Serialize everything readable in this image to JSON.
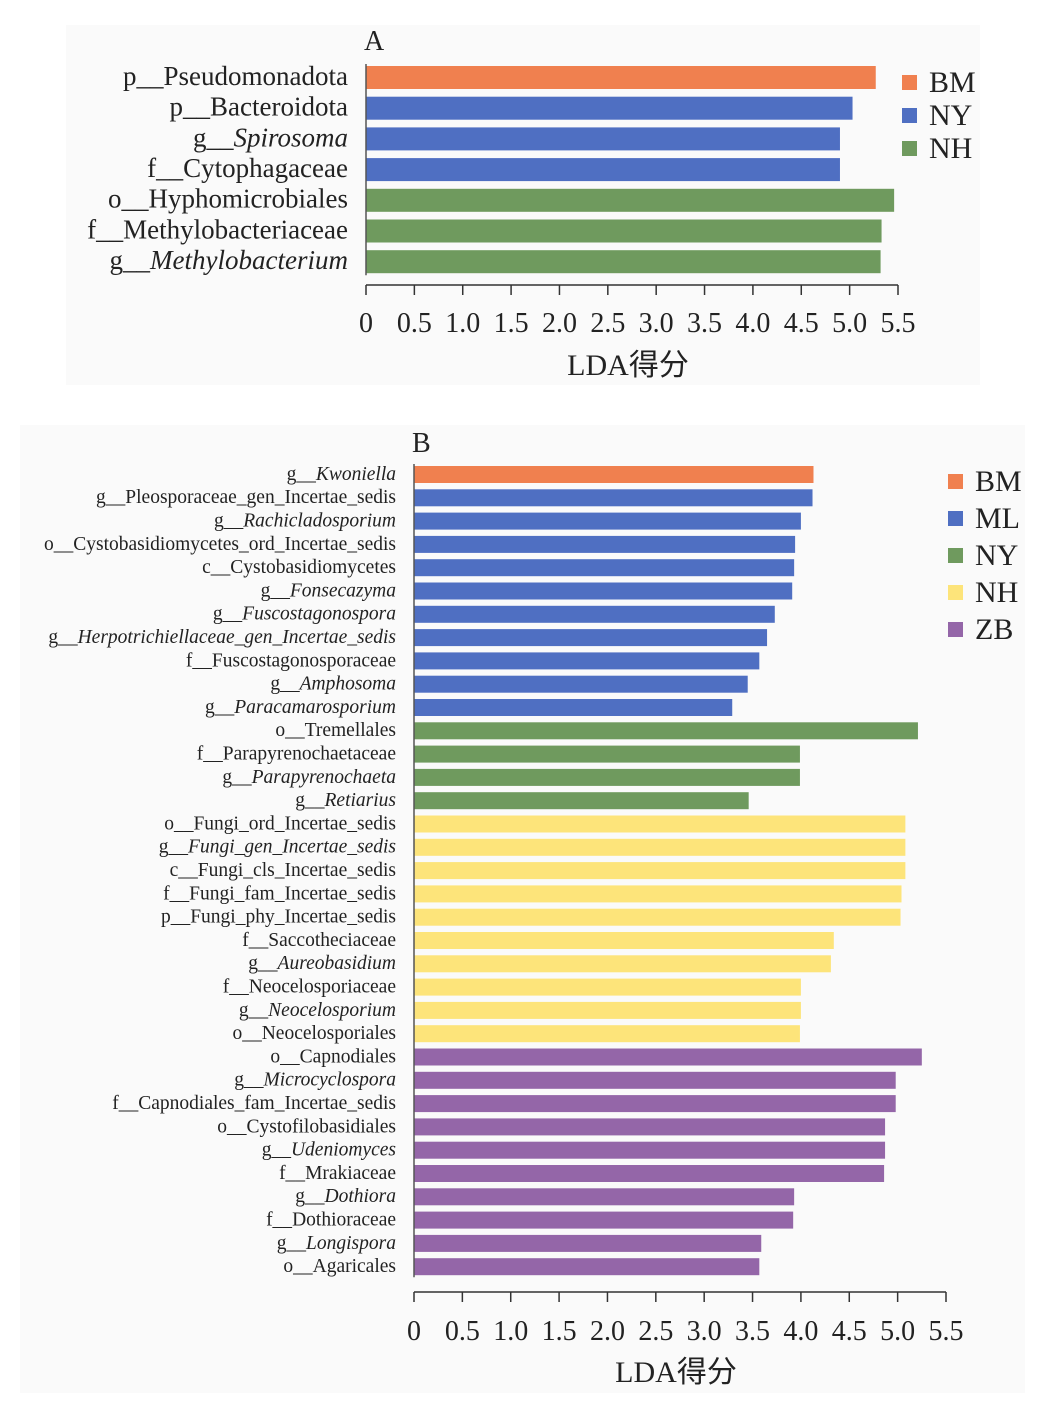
{
  "chart_data": [
    {
      "type": "bar",
      "orientation": "horizontal",
      "panel_label": "A",
      "xlabel": "LDA得分",
      "xlim": [
        0,
        5.5
      ],
      "xticks": [
        "0",
        "0.5",
        "1.0",
        "1.5",
        "2.0",
        "2.5",
        "3.0",
        "3.5",
        "4.0",
        "4.5",
        "5.0",
        "5.5"
      ],
      "legend": [
        {
          "name": "BM",
          "color": "#f0804f"
        },
        {
          "name": "NY",
          "color": "#4f6fc2"
        },
        {
          "name": "NH",
          "color": "#6f9a5e"
        }
      ],
      "legend_placement": "top-right",
      "bars": [
        {
          "prefix": "p__",
          "name": "Pseudomonadota",
          "italic": false,
          "group": "BM",
          "value": 5.27
        },
        {
          "prefix": "p__",
          "name": "Bacteroidota",
          "italic": false,
          "group": "NY",
          "value": 5.03
        },
        {
          "prefix": "g__",
          "name": "Spirosoma",
          "italic": true,
          "group": "NY",
          "value": 4.9
        },
        {
          "prefix": "f__",
          "name": "Cytophagaceae",
          "italic": false,
          "group": "NY",
          "value": 4.9
        },
        {
          "prefix": "o__",
          "name": "Hyphomicrobiales",
          "italic": false,
          "group": "NH",
          "value": 5.46
        },
        {
          "prefix": "f__",
          "name": "Methylobacteriaceae",
          "italic": false,
          "group": "NH",
          "value": 5.33
        },
        {
          "prefix": "g__",
          "name": "Methylobacterium",
          "italic": true,
          "group": "NH",
          "value": 5.32
        }
      ]
    },
    {
      "type": "bar",
      "orientation": "horizontal",
      "panel_label": "B",
      "xlabel": "LDA得分",
      "xlim": [
        0,
        5.5
      ],
      "xticks": [
        "0",
        "0.5",
        "1.0",
        "1.5",
        "2.0",
        "2.5",
        "3.0",
        "3.5",
        "4.0",
        "4.5",
        "5.0",
        "5.5"
      ],
      "legend": [
        {
          "name": "BM",
          "color": "#f0804f"
        },
        {
          "name": "ML",
          "color": "#4f6fc2"
        },
        {
          "name": "NY",
          "color": "#6f9a5e"
        },
        {
          "name": "NH",
          "color": "#fde47a"
        },
        {
          "name": "ZB",
          "color": "#9466a8"
        }
      ],
      "legend_placement": "top-right",
      "bars": [
        {
          "prefix": "g__",
          "name": "Kwoniella",
          "italic": true,
          "group": "BM",
          "value": 4.13
        },
        {
          "prefix": "g__",
          "name": "Pleosporaceae_gen_Incertae_sedis",
          "italic": false,
          "group": "ML",
          "value": 4.12
        },
        {
          "prefix": "g__",
          "name": "Rachicladosporium",
          "italic": true,
          "group": "ML",
          "value": 4.0
        },
        {
          "prefix": "o__",
          "name": "Cystobasidiomycetes_ord_Incertae_sedis",
          "italic": false,
          "group": "ML",
          "value": 3.94
        },
        {
          "prefix": "c__",
          "name": "Cystobasidiomycetes",
          "italic": false,
          "group": "ML",
          "value": 3.93
        },
        {
          "prefix": "g__",
          "name": "Fonsecazyma",
          "italic": true,
          "group": "ML",
          "value": 3.91
        },
        {
          "prefix": "g__",
          "name": "Fuscostagonospora",
          "italic": true,
          "group": "ML",
          "value": 3.73
        },
        {
          "prefix": "g__",
          "name": "Herpotrichiellaceae_gen_Incertae_sedis",
          "italic": true,
          "group": "ML",
          "value": 3.65
        },
        {
          "prefix": "f__",
          "name": "Fuscostagonosporaceae",
          "italic": false,
          "group": "ML",
          "value": 3.57
        },
        {
          "prefix": "g__",
          "name": "Amphosoma",
          "italic": true,
          "group": "ML",
          "value": 3.45
        },
        {
          "prefix": "g__",
          "name": "Paracamarosporium",
          "italic": true,
          "group": "ML",
          "value": 3.29
        },
        {
          "prefix": "o__",
          "name": "Tremellales",
          "italic": false,
          "group": "NY",
          "value": 5.21
        },
        {
          "prefix": "f__",
          "name": "Parapyrenochaetaceae",
          "italic": false,
          "group": "NY",
          "value": 3.99
        },
        {
          "prefix": "g__",
          "name": "Parapyrenochaeta",
          "italic": true,
          "group": "NY",
          "value": 3.99
        },
        {
          "prefix": "g__",
          "name": "Retiarius",
          "italic": true,
          "group": "NY",
          "value": 3.46
        },
        {
          "prefix": "o__",
          "name": "Fungi_ord_Incertae_sedis",
          "italic": false,
          "group": "NH",
          "value": 5.08
        },
        {
          "prefix": "g__",
          "name": "Fungi_gen_Incertae_sedis",
          "italic": true,
          "group": "NH",
          "value": 5.08
        },
        {
          "prefix": "c__",
          "name": "Fungi_cls_Incertae_sedis",
          "italic": false,
          "group": "NH",
          "value": 5.08
        },
        {
          "prefix": "f__",
          "name": "Fungi_fam_Incertae_sedis",
          "italic": false,
          "group": "NH",
          "value": 5.04
        },
        {
          "prefix": "p__",
          "name": "Fungi_phy_Incertae_sedis",
          "italic": false,
          "group": "NH",
          "value": 5.03
        },
        {
          "prefix": "f__",
          "name": "Saccotheciaceae",
          "italic": false,
          "group": "NH",
          "value": 4.34
        },
        {
          "prefix": "g__",
          "name": "Aureobasidium",
          "italic": true,
          "group": "NH",
          "value": 4.31
        },
        {
          "prefix": "f__",
          "name": "Neocelosporiaceae",
          "italic": false,
          "group": "NH",
          "value": 4.0
        },
        {
          "prefix": "g__",
          "name": "Neocelosporium",
          "italic": true,
          "group": "NH",
          "value": 4.0
        },
        {
          "prefix": "o__",
          "name": "Neocelosporiales",
          "italic": false,
          "group": "NH",
          "value": 3.99
        },
        {
          "prefix": "o__",
          "name": "Capnodiales",
          "italic": false,
          "group": "ZB",
          "value": 5.25
        },
        {
          "prefix": "g__",
          "name": "Microcyclospora",
          "italic": true,
          "group": "ZB",
          "value": 4.98
        },
        {
          "prefix": "f__",
          "name": "Capnodiales_fam_Incertae_sedis",
          "italic": false,
          "group": "ZB",
          "value": 4.98
        },
        {
          "prefix": "o__",
          "name": "Cystofilobasidiales",
          "italic": false,
          "group": "ZB",
          "value": 4.87
        },
        {
          "prefix": "g__",
          "name": "Udeniomyces",
          "italic": true,
          "group": "ZB",
          "value": 4.87
        },
        {
          "prefix": "f__",
          "name": "Mrakiaceae",
          "italic": false,
          "group": "ZB",
          "value": 4.86
        },
        {
          "prefix": "g__",
          "name": "Dothiora",
          "italic": true,
          "group": "ZB",
          "value": 3.93
        },
        {
          "prefix": "f__",
          "name": "Dothioraceae",
          "italic": false,
          "group": "ZB",
          "value": 3.92
        },
        {
          "prefix": "g__",
          "name": "Longispora",
          "italic": true,
          "group": "ZB",
          "value": 3.59
        },
        {
          "prefix": "o__",
          "name": "Agaricales",
          "italic": false,
          "group": "ZB",
          "value": 3.57
        }
      ]
    }
  ]
}
